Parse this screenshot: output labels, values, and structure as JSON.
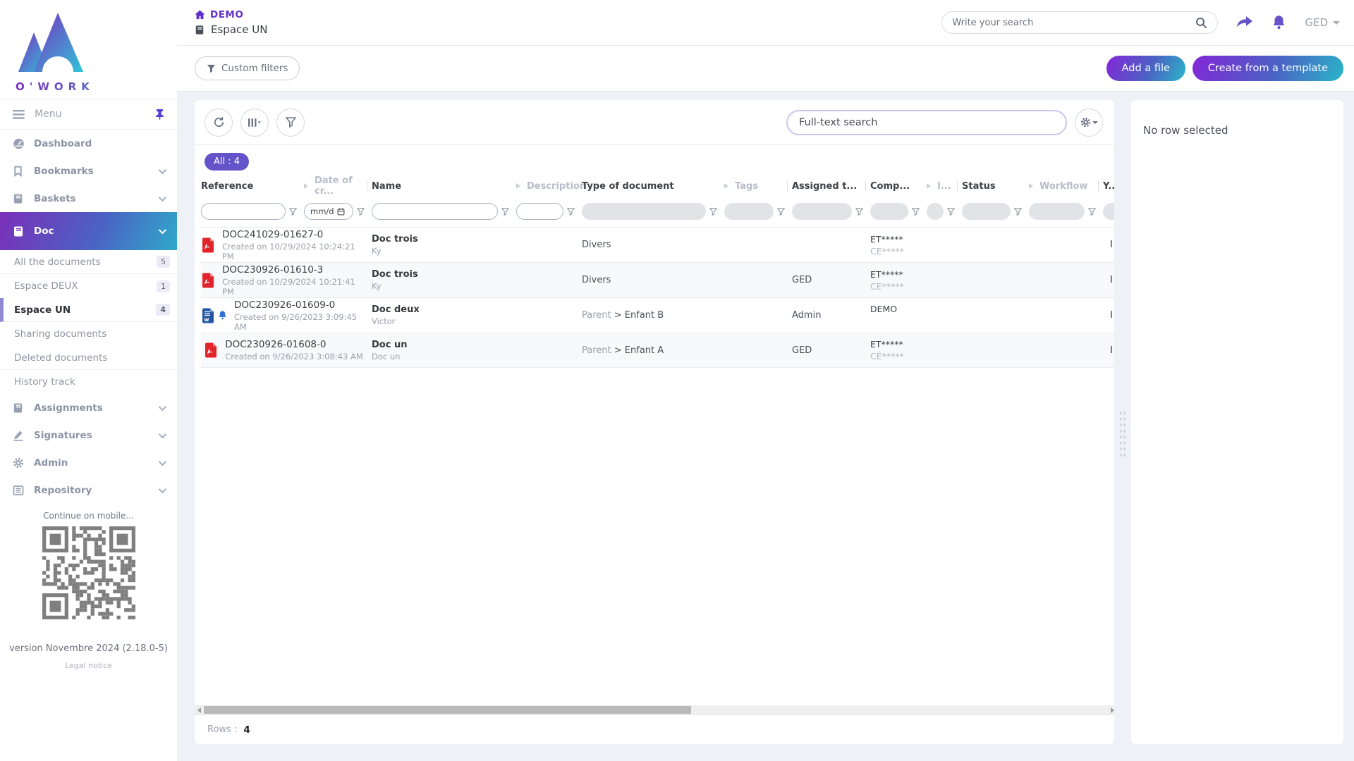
{
  "colors": {
    "accent_purple": "#6852c8",
    "gradient_from": "#7b2fc0",
    "gradient_to": "#2fa9c9",
    "badge_purple": "#6553c9",
    "pdf_red": "#e2242c",
    "word_blue": "#2456a4"
  },
  "brand": {
    "logo_text": "O'WORK"
  },
  "topbar": {
    "breadcrumb": "DEMO",
    "space": "Espace UN",
    "search_placeholder": "Write your search",
    "user": "GED"
  },
  "actionbar": {
    "custom_filters": "Custom filters",
    "add_file": "Add a file",
    "create_from_template": "Create from a template"
  },
  "sidebar": {
    "menu": "Menu",
    "items": [
      {
        "label": "Dashboard"
      },
      {
        "label": "Bookmarks"
      },
      {
        "label": "Baskets"
      },
      {
        "label": "Doc"
      },
      {
        "label": "Assignments"
      },
      {
        "label": "Signatures"
      },
      {
        "label": "Admin"
      },
      {
        "label": "Repository"
      }
    ],
    "doc_children": [
      {
        "label": "All the documents",
        "count": "5"
      },
      {
        "label": "Espace DEUX",
        "count": "1"
      },
      {
        "label": "Espace UN",
        "count": "4"
      },
      {
        "label": "Sharing documents",
        "count": ""
      },
      {
        "label": "Deleted documents",
        "count": ""
      },
      {
        "label": "History track",
        "count": ""
      }
    ],
    "mobile_hint": "Continue on mobile...",
    "version": "version Novembre 2024 (2.18.0-5)",
    "legal_notice": "Legal notice"
  },
  "toolbar": {
    "fulltext_placeholder": "Full-text search",
    "results_badge": "All : 4"
  },
  "table": {
    "columns": [
      {
        "label": "Reference"
      },
      {
        "label": "Date of cr..."
      },
      {
        "label": "Name"
      },
      {
        "label": "Description"
      },
      {
        "label": "Type of document"
      },
      {
        "label": "Tags"
      },
      {
        "label": "Assigned t..."
      },
      {
        "label": "Comp..."
      },
      {
        "label": "I..."
      },
      {
        "label": "Status"
      },
      {
        "label": "Workflow"
      },
      {
        "label": "Y..."
      }
    ],
    "date_filter_placeholder": "mm/d",
    "rows": [
      {
        "file_type": "pdf",
        "reference": "DOC241029-01627-0",
        "created": "Created on 10/29/2024 10:24:21 PM",
        "name": "Doc trois",
        "description": "Ky",
        "type_parent": "",
        "type_sep": "",
        "type": "Divers",
        "assigned": "",
        "comp_line1": "ET*****",
        "comp_line2": "CE*****",
        "edge": "I"
      },
      {
        "file_type": "pdf",
        "reference": "DOC230926-01610-3",
        "created": "Created on 10/29/2024 10:21:41 PM",
        "name": "Doc trois",
        "description": "Ky",
        "type_parent": "",
        "type_sep": "",
        "type": "Divers",
        "assigned": "GED",
        "comp_line1": "ET*****",
        "comp_line2": "CE*****",
        "edge": "I"
      },
      {
        "file_type": "word",
        "reference": "DOC230926-01609-0",
        "created": "Created on 9/26/2023 3:09:45 AM",
        "name": "Doc deux",
        "description": "Victor",
        "type_parent": "Parent",
        "type_sep": " > ",
        "type": "Enfant B",
        "assigned": "Admin",
        "comp_line1": "DEMO",
        "comp_line2": "",
        "edge": "I"
      },
      {
        "file_type": "pdf",
        "reference": "DOC230926-01608-0",
        "created": "Created on 9/26/2023 3:08:43 AM",
        "name": "Doc un",
        "description": "Doc un",
        "type_parent": "Parent",
        "type_sep": " > ",
        "type": "Enfant A",
        "assigned": "GED",
        "comp_line1": "ET*****",
        "comp_line2": "CE*****",
        "edge": "I"
      }
    ]
  },
  "right_panel": {
    "empty_text": "No row selected"
  },
  "footer": {
    "rows_label": "Rows :",
    "rows_count": "4"
  }
}
